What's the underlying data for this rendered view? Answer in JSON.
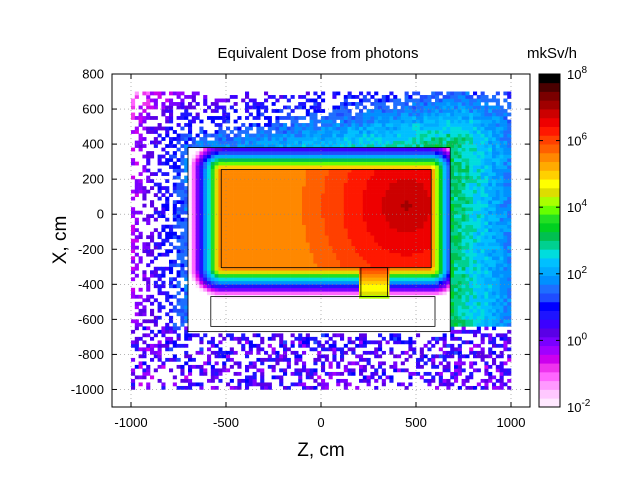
{
  "chart_data": {
    "type": "heatmap",
    "title": "Equivalent Dose from photons",
    "colorbar_label": "mkSv/h",
    "xlabel": "Z, cm",
    "ylabel": "X, cm",
    "xlim": [
      -1100,
      1100
    ],
    "ylim": [
      -1100,
      800
    ],
    "x_ticks": [
      {
        "value": -1000,
        "label": "-1000"
      },
      {
        "value": -500,
        "label": "-500"
      },
      {
        "value": 0,
        "label": "0"
      },
      {
        "value": 500,
        "label": "500"
      },
      {
        "value": 1000,
        "label": "1000"
      }
    ],
    "y_ticks": [
      {
        "value": 800,
        "label": "800"
      },
      {
        "value": 600,
        "label": "600"
      },
      {
        "value": 400,
        "label": "400"
      },
      {
        "value": 200,
        "label": "200"
      },
      {
        "value": 0,
        "label": "0"
      },
      {
        "value": -200,
        "label": "-200"
      },
      {
        "value": -400,
        "label": "-400"
      },
      {
        "value": -600,
        "label": "-600"
      },
      {
        "value": -800,
        "label": "-800"
      },
      {
        "value": -1000,
        "label": "-1000"
      }
    ],
    "colorbar_scale": "log",
    "colorbar_range_exponent": [
      -2,
      8
    ],
    "colorbar_ticks": [
      {
        "exponent": 8,
        "base": "10",
        "exp": "8"
      },
      {
        "exponent": 6,
        "base": "10",
        "exp": "6"
      },
      {
        "exponent": 4,
        "base": "10",
        "exp": "4"
      },
      {
        "exponent": 2,
        "base": "10",
        "exp": "2"
      },
      {
        "exponent": 0,
        "base": "10",
        "exp": "0"
      },
      {
        "exponent": -2,
        "base": "10",
        "exp": "-2"
      }
    ],
    "colormap": [
      "#ffe8ff",
      "#ffc8ff",
      "#ff99ff",
      "#ff66ff",
      "#ee33ee",
      "#cc00ee",
      "#a000ff",
      "#7a00ff",
      "#5a00e6",
      "#3c00ff",
      "#1e14ff",
      "#0000ff",
      "#1f4cff",
      "#1e6eff",
      "#0090ff",
      "#00aaff",
      "#00c0ff",
      "#00dddd",
      "#00d090",
      "#00c050",
      "#00d020",
      "#22e022",
      "#66ff00",
      "#aaff00",
      "#dddd00",
      "#ffff00",
      "#ffd000",
      "#ffaa00",
      "#ff8800",
      "#ff6000",
      "#ff4000",
      "#ff1800",
      "#ee0000",
      "#cc0000",
      "#a00000",
      "#7a0000",
      "#4a0000",
      "#000000"
    ],
    "grid": true,
    "field": {
      "source_center": [
        450,
        50
      ],
      "max_exponent": 7,
      "outer_box": {
        "z": [
          -700,
          680
        ],
        "x": [
          -670,
          380
        ]
      },
      "inner_box": {
        "z": [
          -525,
          580
        ],
        "x": [
          -305,
          255
        ]
      },
      "lower_block": {
        "z": [
          -580,
          600
        ],
        "x": [
          -640,
          -470
        ]
      },
      "duct": {
        "z": [
          210,
          350
        ],
        "x": [
          -470,
          -305
        ]
      }
    }
  }
}
